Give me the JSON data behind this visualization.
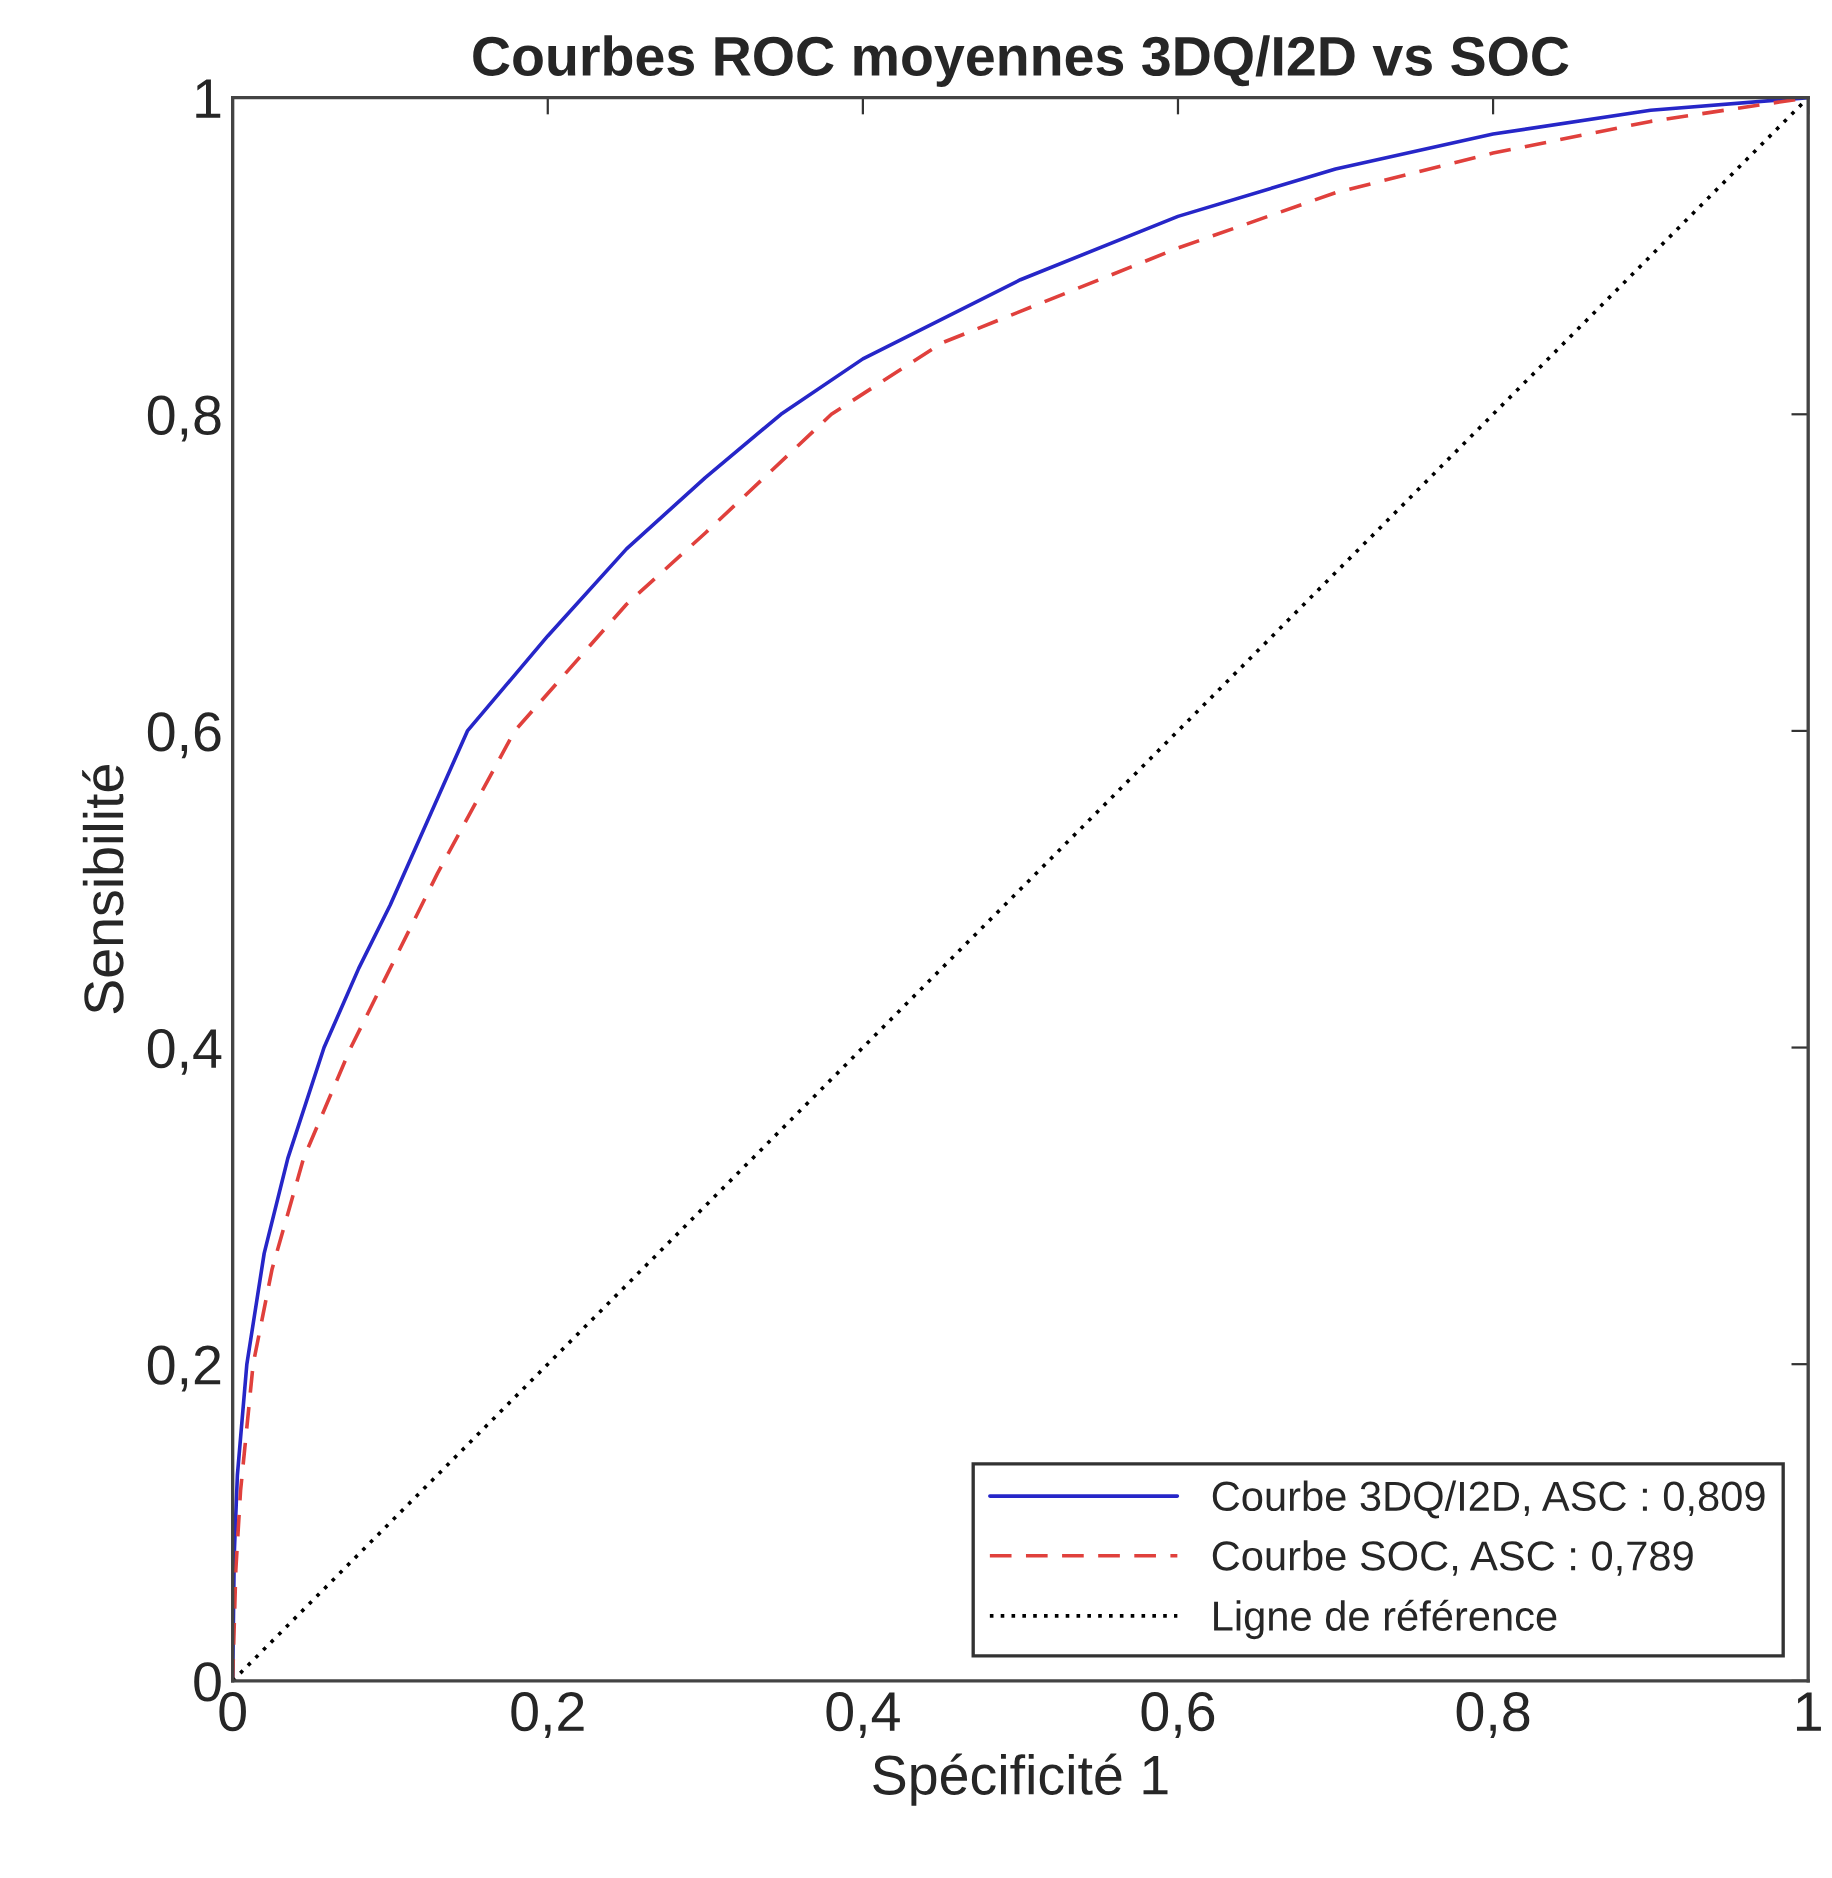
{
  "chart_data": {
    "type": "line",
    "title": "Courbes ROC moyennes 3DQ/I2D vs SOC",
    "xlabel": "Spécificité 1",
    "ylabel": "Sensibilité",
    "xlim": [
      0,
      1
    ],
    "ylim": [
      0,
      1
    ],
    "xticks": [
      0,
      {
        "value": 0.2,
        "label": "0,2"
      },
      {
        "value": 0.4,
        "label": "0,4"
      },
      {
        "value": 0.6,
        "label": "0,6"
      },
      {
        "value": 0.8,
        "label": "0,8"
      },
      1
    ],
    "yticks": [
      0,
      {
        "value": 0.2,
        "label": "0,2"
      },
      {
        "value": 0.4,
        "label": "0,4"
      },
      {
        "value": 0.6,
        "label": "0,6"
      },
      {
        "value": 0.8,
        "label": "0,8"
      },
      1
    ],
    "grid": false,
    "legend": "bottom right",
    "marker": "none",
    "series": [
      {
        "name": "Courbe 3DQ/I2D, ASC : 0,809",
        "color": "#2626c8",
        "line_style": "solid",
        "x": [
          0,
          0.001,
          0.003,
          0.009,
          0.02,
          0.035,
          0.058,
          0.08,
          0.1,
          0.149,
          0.2,
          0.25,
          0.3,
          0.348,
          0.4,
          0.5,
          0.6,
          0.7,
          0.8,
          0.9,
          1
        ],
        "values": [
          0,
          0.08,
          0.13,
          0.2,
          0.27,
          0.33,
          0.4,
          0.45,
          0.49,
          0.6,
          0.66,
          0.715,
          0.76,
          0.8,
          0.835,
          0.885,
          0.925,
          0.955,
          0.977,
          0.992,
          1
        ]
      },
      {
        "name": "Courbe SOC, ASC : 0,789",
        "color": "#e0403c",
        "line_style": "dashed",
        "x": [
          0,
          0.002,
          0.005,
          0.013,
          0.025,
          0.045,
          0.075,
          0.1,
          0.13,
          0.179,
          0.25,
          0.3,
          0.38,
          0.45,
          0.5,
          0.6,
          0.7,
          0.8,
          0.9,
          1
        ],
        "values": [
          0,
          0.07,
          0.12,
          0.2,
          0.26,
          0.33,
          0.4,
          0.45,
          0.51,
          0.6,
          0.68,
          0.725,
          0.8,
          0.845,
          0.865,
          0.905,
          0.94,
          0.965,
          0.985,
          1
        ]
      },
      {
        "name": "Ligne de référence",
        "color": "#000000",
        "line_style": "dotted",
        "x": [
          0,
          1
        ],
        "values": [
          0,
          1
        ]
      }
    ]
  }
}
